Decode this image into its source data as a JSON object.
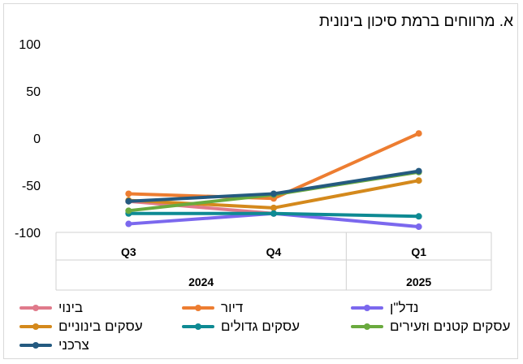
{
  "chart_data": {
    "type": "line",
    "title": "א. מרווחים ברמת סיכון בינונית",
    "xlabel": "",
    "ylabel": "",
    "ylim": [
      -100,
      100
    ],
    "yticks": [
      100,
      50,
      0,
      -50,
      -100
    ],
    "categories": [
      "Q3",
      "Q4",
      "Q1"
    ],
    "category_groups": [
      {
        "label": "2024",
        "span": 2
      },
      {
        "label": "2025",
        "span": 1
      }
    ],
    "grid": false,
    "legend_position": "bottom",
    "series": [
      {
        "name": "בינוי",
        "color": "#e07a8b",
        "values": [
          -67,
          -80,
          null
        ]
      },
      {
        "name": "דיור",
        "color": "#ed7d31",
        "values": [
          -59,
          -64,
          5
        ]
      },
      {
        "name": "נדל\"ן",
        "color": "#7b68ee",
        "values": [
          -91,
          -80,
          -94
        ]
      },
      {
        "name": "עסקים בינוניים",
        "color": "#d4891c",
        "values": [
          -66,
          -74,
          -45
        ]
      },
      {
        "name": "עסקים גדולים",
        "color": "#0e8a93",
        "values": [
          -80,
          -80,
          -83
        ]
      },
      {
        "name": "עסקים קטנים וזעירים",
        "color": "#6aaa3e",
        "values": [
          -77,
          -60,
          -36
        ]
      },
      {
        "name": "צרכני",
        "color": "#245a80",
        "values": [
          -67,
          -59,
          -35
        ]
      }
    ]
  }
}
